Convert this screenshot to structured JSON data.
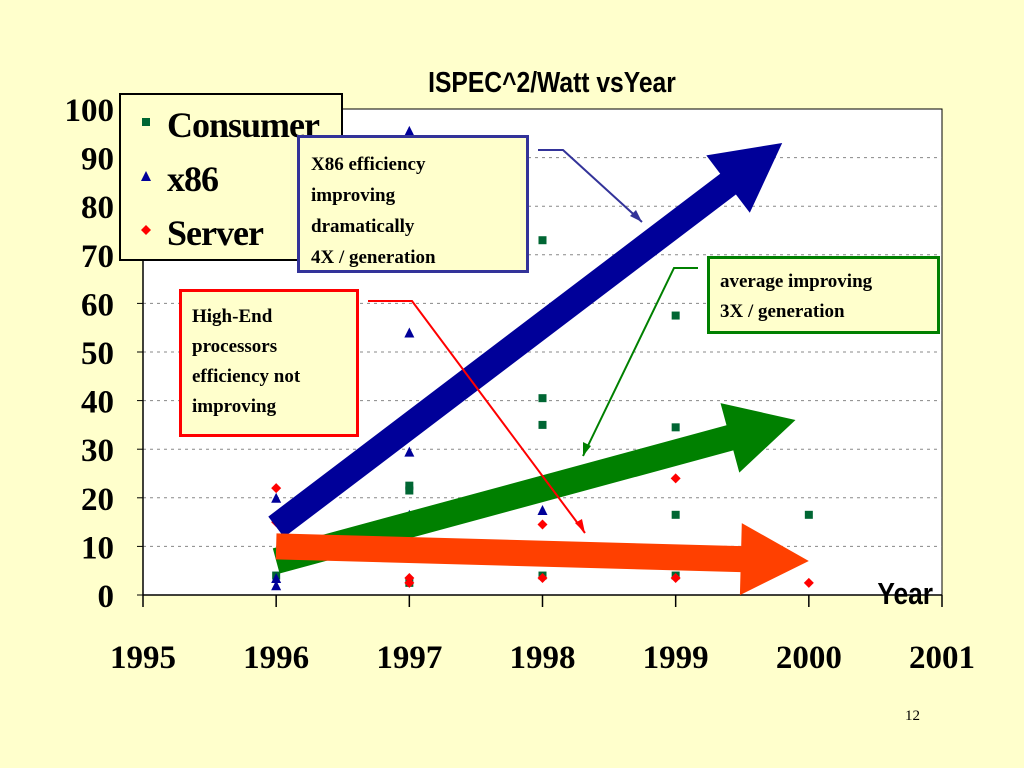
{
  "slide_number": "12",
  "chart_data": {
    "type": "scatter",
    "title": "ISPEC^2/Watt vsYear",
    "xlabel": "Year",
    "ylabel": "",
    "xlim": [
      1995,
      2001
    ],
    "ylim": [
      0,
      100
    ],
    "x_ticks": [
      "1995",
      "1996",
      "1997",
      "1998",
      "1999",
      "2000",
      "2001"
    ],
    "y_ticks": [
      "0",
      "10",
      "20",
      "30",
      "40",
      "50",
      "60",
      "70",
      "80",
      "90",
      "100"
    ],
    "grid": "horizontal dashed",
    "legend_position": "top-left",
    "series": [
      {
        "name": "Consumer",
        "marker": "square",
        "color": "#006633",
        "points": [
          {
            "x": 1996,
            "y": 4
          },
          {
            "x": 1997,
            "y": 22.5
          },
          {
            "x": 1997,
            "y": 21.5
          },
          {
            "x": 1997,
            "y": 2.5
          },
          {
            "x": 1998,
            "y": 73
          },
          {
            "x": 1998,
            "y": 40.5
          },
          {
            "x": 1998,
            "y": 35
          },
          {
            "x": 1998,
            "y": 4
          },
          {
            "x": 1999,
            "y": 57.5
          },
          {
            "x": 1999,
            "y": 34.5
          },
          {
            "x": 1999,
            "y": 16.5
          },
          {
            "x": 1999,
            "y": 4
          },
          {
            "x": 2000,
            "y": 16.5
          }
        ]
      },
      {
        "name": "x86",
        "marker": "triangle",
        "color": "#000099",
        "points": [
          {
            "x": 1996,
            "y": 20
          },
          {
            "x": 1996,
            "y": 3.5
          },
          {
            "x": 1996,
            "y": 2
          },
          {
            "x": 1997,
            "y": 95.5
          },
          {
            "x": 1997,
            "y": 54
          },
          {
            "x": 1997,
            "y": 29.5
          },
          {
            "x": 1997,
            "y": 16.5
          },
          {
            "x": 1998,
            "y": 17.5
          }
        ]
      },
      {
        "name": "Server",
        "marker": "diamond",
        "color": "#FF0000",
        "points": [
          {
            "x": 1996,
            "y": 22
          },
          {
            "x": 1996,
            "y": 15
          },
          {
            "x": 1997,
            "y": 3.5
          },
          {
            "x": 1997,
            "y": 2.5
          },
          {
            "x": 1998,
            "y": 14.5
          },
          {
            "x": 1998,
            "y": 3.5
          },
          {
            "x": 1999,
            "y": 24
          },
          {
            "x": 1999,
            "y": 3.5
          },
          {
            "x": 2000,
            "y": 2.5
          }
        ]
      }
    ],
    "trend_arrows": [
      {
        "name": "x86 trend",
        "color": "#000099",
        "from": {
          "x": 1996,
          "y": 14
        },
        "to": {
          "x": 1999.8,
          "y": 93
        }
      },
      {
        "name": "average trend",
        "color": "#008000",
        "from": {
          "x": 1996,
          "y": 7
        },
        "to": {
          "x": 1999.9,
          "y": 36
        }
      },
      {
        "name": "server trend",
        "color": "#FF4000",
        "from": {
          "x": 1996,
          "y": 10
        },
        "to": {
          "x": 2000,
          "y": 7
        }
      }
    ],
    "annotations": [
      {
        "lines": [
          "X86 efficiency",
          "improving",
          "dramatically",
          "4X / generation"
        ],
        "border_color": "#333399"
      },
      {
        "lines": [
          "average improving",
          "3X / generation"
        ],
        "border_color": "#008000"
      },
      {
        "lines": [
          "High-End",
          "processors",
          "efficiency not",
          "improving"
        ],
        "border_color": "#FF0000"
      }
    ]
  }
}
